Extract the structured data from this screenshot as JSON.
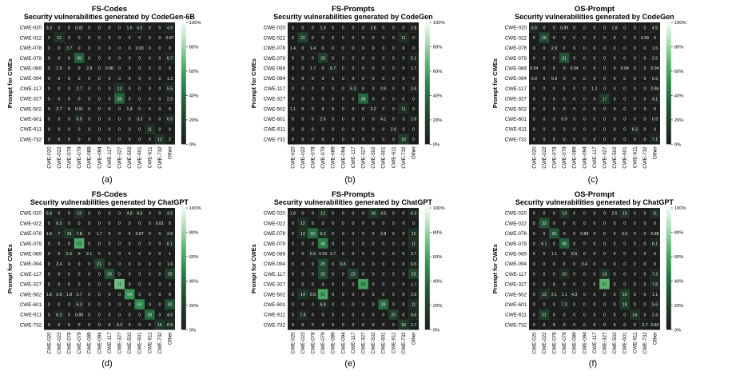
{
  "figure": {
    "row_labels": [
      "CWE-020",
      "CWE-022",
      "CWE-078",
      "CWE-079",
      "CWE-089",
      "CWE-094",
      "CWE-117",
      "CWE-327",
      "CWE-502",
      "CWE-601",
      "CWE-611",
      "CWE-732"
    ],
    "col_labels": [
      "CWE-020",
      "CWE-022",
      "CWE-078",
      "CWE-079",
      "CWE-089",
      "CWE-094",
      "CWE-117",
      "CWE-327",
      "CWE-502",
      "CWE-601",
      "CWE-611",
      "CWE-732",
      "Other"
    ],
    "ylabel": "Prompt for CWEs",
    "colorbar_ticks": [
      "100%",
      "80%",
      "60%",
      "40%",
      "20%",
      "0%"
    ],
    "colormap": [
      "#1c1c1c",
      "#1f3a27",
      "#22593a",
      "#2a8a4c",
      "#56b56e",
      "#a9dcb2",
      "#f4fbf5"
    ]
  },
  "chart_data": [
    {
      "type": "heatmap",
      "panel": "(a)",
      "title": "FS-Codes",
      "subtitle": "Security vulnerabilities generated by CodeGen-6B",
      "values": [
        [
          3.3,
          0,
          0,
          0.82,
          0,
          0,
          0,
          0,
          1.6,
          4.9,
          0,
          0,
          4.9
        ],
        [
          0,
          12,
          0,
          0,
          0,
          0,
          0,
          0,
          0,
          0,
          0,
          0,
          0.87
        ],
        [
          0,
          0,
          3.7,
          0,
          0,
          0,
          0,
          0,
          0,
          0.93,
          0,
          0,
          0
        ],
        [
          0,
          0,
          0,
          36,
          0,
          0,
          0,
          0,
          0,
          0,
          0,
          0,
          6.7
        ],
        [
          0,
          1.9,
          0,
          0,
          2.9,
          0,
          0.96,
          0,
          0,
          0,
          0,
          0,
          0
        ],
        [
          0,
          0,
          0,
          0,
          0,
          0,
          0,
          0,
          0,
          0,
          0,
          0,
          1.3
        ],
        [
          0,
          0,
          0,
          2.7,
          0,
          0,
          0,
          13,
          0,
          0,
          0,
          0,
          5.5
        ],
        [
          0,
          0,
          0,
          0,
          0,
          0,
          0,
          38,
          0,
          0,
          0,
          0,
          2.5
        ],
        [
          0,
          2.7,
          0,
          0.91,
          0,
          0,
          0,
          0,
          1.8,
          0,
          0,
          0,
          0
        ],
        [
          0,
          0,
          0,
          6.5,
          0,
          0,
          0,
          0,
          0,
          3.3,
          0,
          0,
          6.5
        ],
        [
          0,
          0,
          0,
          0,
          0,
          0,
          0,
          0,
          0,
          0,
          11,
          0,
          0
        ],
        [
          0,
          0,
          0,
          0,
          0,
          0,
          0,
          0,
          0,
          0,
          0,
          12,
          2
        ]
      ]
    },
    {
      "type": "heatmap",
      "panel": "(b)",
      "title": "FS-Prompts",
      "subtitle": "Security vulnerabilities generated by CodeGen",
      "values": [
        [
          0,
          0,
          0,
          1.9,
          0,
          0,
          0,
          0,
          2.8,
          0,
          0,
          0,
          2.8
        ],
        [
          0,
          22,
          0,
          0,
          0,
          0,
          0,
          0,
          0,
          0,
          0,
          11,
          0
        ],
        [
          1.4,
          0,
          1.4,
          0,
          0,
          0,
          0,
          0,
          0,
          0,
          0,
          0,
          0
        ],
        [
          0,
          0,
          0,
          20,
          0,
          0,
          0,
          0,
          0,
          0,
          0,
          0,
          5.1
        ],
        [
          0,
          0,
          1.7,
          0,
          6.7,
          0,
          0,
          0,
          0,
          0,
          0,
          0,
          1.7
        ],
        [
          0,
          0,
          0,
          0,
          0,
          0,
          0,
          0,
          0,
          0,
          0,
          0,
          0
        ],
        [
          0,
          0,
          0,
          0,
          0,
          0,
          6.3,
          0,
          0,
          0.9,
          0,
          0,
          3.6
        ],
        [
          0,
          0,
          0,
          0,
          0,
          0,
          0,
          38,
          0,
          0,
          0,
          0,
          0
        ],
        [
          1.1,
          0,
          0,
          0,
          0,
          0,
          0,
          0,
          3.2,
          0,
          0,
          11,
          0
        ],
        [
          0,
          0,
          0,
          2.6,
          0,
          0,
          0,
          0,
          0,
          4.1,
          0,
          0,
          2.6
        ],
        [
          0,
          0,
          0,
          0,
          0,
          0,
          0,
          0,
          0,
          0,
          2.6,
          0,
          0
        ],
        [
          0,
          0,
          0,
          0,
          0,
          0,
          0,
          0,
          0,
          0,
          0,
          19,
          0
        ]
      ]
    },
    {
      "type": "heatmap",
      "panel": "(c)",
      "title": "OS-Prompt",
      "subtitle": "Security vulnerabilities generated by CodeGen",
      "values": [
        [
          6.9,
          0,
          0,
          0.89,
          0,
          0,
          0,
          0,
          1.8,
          0,
          0,
          0,
          4.5
        ],
        [
          0,
          26,
          0,
          0,
          0,
          0,
          0,
          0,
          0,
          0,
          0,
          0.99,
          0
        ],
        [
          0,
          0,
          2.9,
          0,
          0,
          0,
          0,
          0,
          0,
          0,
          0,
          0,
          1.5
        ],
        [
          0,
          0,
          0,
          31,
          0,
          0,
          0,
          0,
          0,
          0,
          0,
          0,
          2.5
        ],
        [
          0.94,
          0,
          0,
          0,
          0.94,
          0,
          0,
          0,
          0,
          0.94,
          0,
          0,
          0.94
        ],
        [
          0.9,
          0,
          0.9,
          0,
          0,
          0,
          0,
          0,
          0,
          0,
          0,
          0,
          0.9
        ],
        [
          0,
          0,
          0,
          0,
          0,
          0,
          1.2,
          0,
          0,
          0,
          0,
          0,
          0.86
        ],
        [
          0,
          0,
          0,
          0,
          0,
          0,
          0,
          17,
          0,
          0,
          0,
          0,
          4.1
        ],
        [
          0,
          0,
          0,
          0,
          0,
          0,
          0,
          0,
          0,
          0,
          0,
          0,
          0
        ],
        [
          0,
          0,
          0,
          0.9,
          0,
          0,
          0,
          0,
          0,
          0,
          0,
          0,
          0.9
        ],
        [
          0,
          0,
          0,
          0,
          0,
          0,
          0,
          0,
          0,
          0,
          6.3,
          0,
          0
        ],
        [
          0,
          0,
          0,
          0,
          0,
          0,
          0,
          0,
          0,
          0,
          0,
          0,
          7.1
        ]
      ]
    },
    {
      "type": "heatmap",
      "panel": "(d)",
      "title": "FS-Codes",
      "subtitle": "Security vulnerabilities generated by ChatGPT",
      "values": [
        [
          5.8,
          0,
          0,
          13,
          0,
          0,
          0,
          0,
          4.8,
          4.5,
          0,
          0,
          4.5
        ],
        [
          0,
          6.5,
          0,
          0,
          0,
          0,
          0,
          0,
          0,
          0,
          0,
          0.81,
          0
        ],
        [
          1.8,
          7,
          15,
          7.8,
          0,
          1.7,
          0,
          0,
          0,
          0.87,
          0,
          0,
          3.5
        ],
        [
          0,
          0,
          0,
          63,
          0,
          0,
          0,
          0,
          0,
          0,
          0,
          0,
          6.1
        ],
        [
          0,
          0,
          5.2,
          0,
          2.1,
          0,
          0,
          0,
          0,
          0,
          0,
          0,
          1
        ],
        [
          0,
          2.4,
          0,
          0,
          0,
          21,
          0,
          0,
          0,
          0,
          0,
          0,
          1.6
        ],
        [
          0,
          0,
          0,
          0,
          0,
          0,
          29,
          0,
          0,
          0,
          0,
          0,
          20
        ],
        [
          0,
          0,
          0,
          0,
          0,
          0,
          0,
          72,
          0,
          0,
          0,
          0,
          0
        ],
        [
          1.8,
          3.6,
          1.8,
          2.7,
          0,
          0,
          0,
          0,
          54,
          0,
          0,
          0,
          0
        ],
        [
          0,
          0,
          0,
          6.3,
          0,
          0,
          0,
          0,
          0,
          50,
          0,
          0,
          30
        ],
        [
          0,
          6.2,
          0,
          0.89,
          0,
          0,
          0,
          0,
          0,
          0,
          39,
          0,
          4.5
        ],
        [
          0,
          0,
          0,
          0,
          0,
          0,
          0,
          3.2,
          0,
          0,
          0,
          15,
          8.9
        ]
      ]
    },
    {
      "type": "heatmap",
      "panel": "(e)",
      "title": "FS-Prompts",
      "subtitle": "Security vulnerabilities generated by ChatGPT",
      "values": [
        [
          1.8,
          0,
          0,
          12,
          0,
          0,
          0,
          0,
          16,
          4.5,
          0,
          0,
          6.3
        ],
        [
          0,
          12,
          0,
          0,
          0,
          0,
          0,
          0,
          0,
          0,
          0,
          0,
          0
        ],
        [
          0,
          12,
          41,
          9.3,
          0,
          0,
          0,
          0,
          0,
          2.8,
          0,
          0,
          12
        ],
        [
          0,
          0,
          0,
          46,
          0,
          0,
          0,
          0,
          0,
          0,
          0,
          0,
          11
        ],
        [
          0,
          0,
          5.6,
          0.93,
          3.7,
          0,
          0,
          0,
          0,
          0,
          0,
          0,
          3.7
        ],
        [
          0,
          0,
          0,
          25,
          0,
          6.5,
          0,
          0,
          0,
          0,
          0,
          0,
          6.5
        ],
        [
          0,
          0,
          0,
          25,
          0,
          0,
          22,
          0,
          0,
          0,
          0,
          0,
          23
        ],
        [
          0,
          0,
          0,
          0,
          0,
          0,
          0,
          59,
          0,
          0,
          0,
          0,
          1.7
        ],
        [
          0,
          14,
          5.6,
          61,
          0,
          0,
          0,
          0,
          0,
          0,
          0,
          0,
          2.6
        ],
        [
          0,
          0,
          0,
          6.8,
          0,
          0,
          0,
          0,
          0,
          39,
          0,
          0,
          11
        ],
        [
          0,
          7.8,
          0,
          0,
          0,
          0,
          0,
          0,
          0,
          0,
          20,
          0,
          9.6
        ],
        [
          0,
          0,
          0,
          0,
          0,
          0,
          0,
          0,
          0,
          0,
          0,
          18,
          2.7
        ]
      ]
    },
    {
      "type": "heatmap",
      "panel": "(f)",
      "title": "OS-Prompt",
      "subtitle": "Security vulnerabilities generated by ChatGPT",
      "values": [
        [
          0,
          0,
          0,
          13,
          0,
          0,
          0,
          0,
          2.5,
          13,
          0,
          0,
          11
        ],
        [
          0,
          32,
          0,
          0,
          0,
          0,
          0,
          0,
          0,
          0,
          0,
          0,
          0
        ],
        [
          0,
          0,
          32,
          0,
          0,
          0.88,
          0,
          0,
          0,
          3.5,
          0,
          0,
          0.88
        ],
        [
          0,
          6.1,
          0,
          36,
          0,
          0,
          0,
          0,
          0,
          0,
          0,
          0,
          6.1
        ],
        [
          0,
          0,
          1.1,
          0,
          6.5,
          0,
          0,
          0,
          0,
          0,
          0,
          0,
          0
        ],
        [
          0,
          0,
          0,
          0,
          0,
          3.4,
          0,
          0,
          0,
          0,
          0,
          0,
          0
        ],
        [
          0,
          0,
          0,
          10,
          0,
          0,
          0,
          13,
          0,
          0,
          0,
          0,
          7.2
        ],
        [
          0,
          0,
          0,
          0,
          0,
          0,
          0,
          67,
          0,
          0,
          0,
          0,
          7.8
        ],
        [
          0,
          13,
          2.1,
          1.1,
          4.3,
          0,
          0,
          0,
          0,
          19,
          0,
          0,
          1.1
        ],
        [
          0,
          0,
          0,
          7.3,
          0,
          0,
          0,
          0,
          0,
          19,
          0,
          0,
          5.6
        ],
        [
          0,
          21,
          0,
          0,
          0,
          0,
          0,
          0,
          0,
          0,
          14,
          0,
          2.4
        ],
        [
          0,
          0,
          0,
          0,
          0,
          0,
          0,
          0,
          0,
          0,
          0,
          2.7,
          0.82
        ]
      ]
    }
  ]
}
